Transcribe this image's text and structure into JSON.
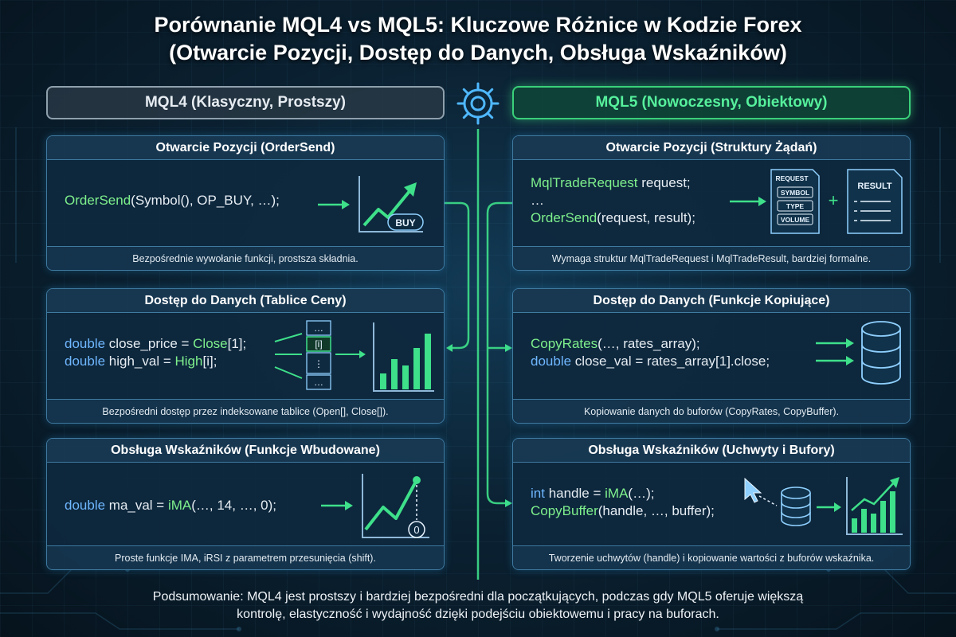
{
  "title": {
    "line1": "Porównanie MQL4 vs MQL5: Kluczowe Różnice w Kodzie Forex",
    "line2": "(Otwarcie Pozycji, Dostęp do Danych, Obsługa Wskaźników)"
  },
  "columns": {
    "left": "MQL4 (Klasyczny, Prostszy)",
    "right": "MQL5 (Nowoczesny, Obiektowy)"
  },
  "colors": {
    "left_accent": "#8fa0ad",
    "right_accent": "#3ad07a",
    "keyword": "#6fb7ff",
    "function": "#7ef08c",
    "panel_border": "#3f7aa0"
  },
  "mql4": {
    "order": {
      "title": "Otwarcie Pozycji (OrderSend)",
      "code": {
        "fn": "OrderSend",
        "rest": "(Symbol(), OP_BUY, …);"
      },
      "badge": "BUY",
      "footer": "Bezpośrednie wywołanie funkcji, prostsza składnia."
    },
    "data": {
      "title": "Dostęp do Danych (Tablice Ceny)",
      "line1": {
        "kw": "double",
        "mid": " close_price = ",
        "fn": "Close",
        "rest": "[1];"
      },
      "line2": {
        "kw": "double",
        "mid": " high_val = ",
        "fn": "High",
        "rest": "[i];"
      },
      "array_cells": [
        "…",
        "[i]",
        "⋮",
        "…"
      ],
      "footer": "Bezpośredni dostęp przez indeksowane tablice (Open[], Close[])."
    },
    "indicator": {
      "title": "Obsługa Wskaźników (Funkcje Wbudowane)",
      "code": {
        "kw": "double",
        "mid": " ma_val = ",
        "fn": "iMA",
        "rest": "(…, 14, …, 0);"
      },
      "shift_label": "0",
      "footer": "Proste funkcje IMA, iRSI z parametrem przesunięcia (shift)."
    }
  },
  "mql5": {
    "order": {
      "title": "Otwarcie Pozycji (Struktury Żądań)",
      "line1": {
        "fn": "MqlTradeRequest",
        "rest": " request;"
      },
      "line2": "…",
      "line3": {
        "fn": "OrderSend",
        "rest": "(request, result);"
      },
      "request_doc": {
        "header": "REQUEST",
        "fields": [
          "SYMBOL",
          "TYPE",
          "VOLUME"
        ]
      },
      "plus": "+",
      "result_doc": "RESULT",
      "footer": "Wymaga struktur MqlTradeRequest i MqlTradeResult, bardziej formalne."
    },
    "data": {
      "title": "Dostęp do Danych (Funkcje Kopiujące)",
      "line1": {
        "fn": "CopyRates",
        "rest": "(…, rates_array);"
      },
      "line2": {
        "kw": "double",
        "rest": " close_val = rates_array[1].close;"
      },
      "footer": "Kopiowanie danych do buforów (CopyRates, CopyBuffer)."
    },
    "indicator": {
      "title": "Obsługa Wskaźników (Uchwyty i Bufory)",
      "line1": {
        "kw": "int",
        "mid": " handle = ",
        "fn": "iMA",
        "rest": "(…);"
      },
      "line2": {
        "fn": "CopyBuffer",
        "rest": "(handle, …, buffer);"
      },
      "footer": "Tworzenie uchwytów (handle) i kopiowanie wartości z buforów wskaźnika."
    }
  },
  "summary": {
    "line1": "Podsumowanie: MQL4 jest prostszy i bardziej bezpośredni dla początkujących, podczas gdy MQL5 oferuje większą",
    "line2": "kontrolę, elastyczność i wydajność dzięki podejściu obiektowemu i pracy na buforach."
  }
}
